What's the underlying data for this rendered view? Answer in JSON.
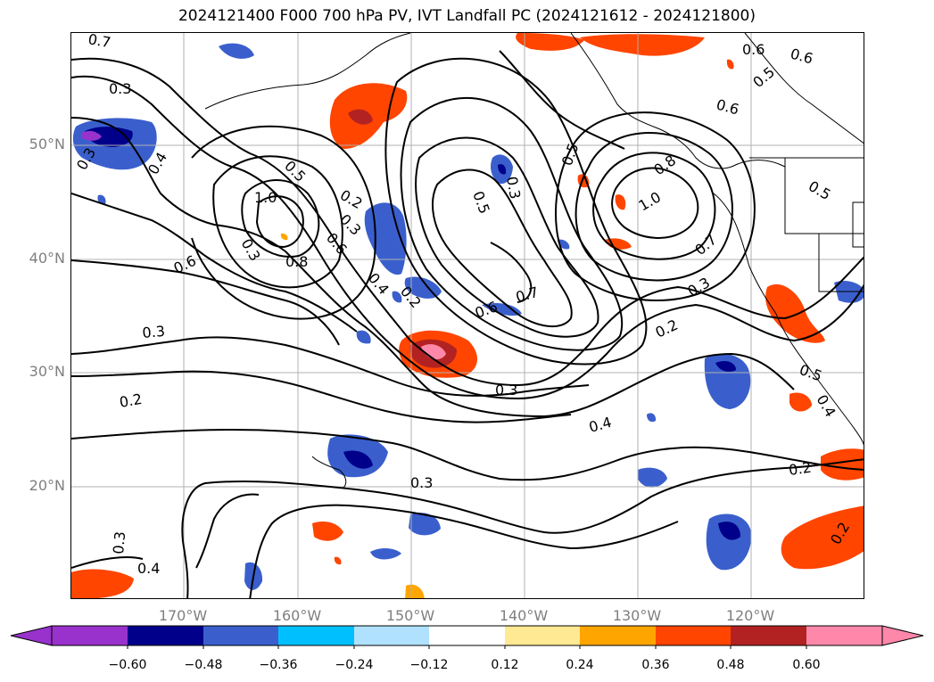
{
  "title": "2024121400 F000 700 hPa PV, IVT Landfall PC (2024121612 - 2024121800)",
  "lat_labels": [
    "50°N",
    "40°N",
    "30°N",
    "20°N"
  ],
  "lon_labels": [
    "170°W",
    "160°W",
    "150°W",
    "140°W",
    "130°W",
    "120°W"
  ],
  "colorbar": {
    "ticks": [
      "−0.60",
      "−0.48",
      "−0.36",
      "−0.24",
      "−0.12",
      "0.12",
      "0.24",
      "0.36",
      "0.48",
      "0.60"
    ],
    "colors": [
      "#9932cc",
      "#00008b",
      "#3a5fcd",
      "#00bfff",
      "#b0e2ff",
      "#ffffff",
      "#ffe993",
      "#ffa500",
      "#ff4500",
      "#b22222",
      "#ff88aa"
    ]
  },
  "contour_labels": [
    "0.7",
    "0.3",
    "0.4",
    "0.3",
    "1.0",
    "0.6",
    "0.8",
    "0.3",
    "0.2",
    "0.2",
    "0.5",
    "0.3",
    "0.6",
    "0.4",
    "0.2",
    "0.3",
    "0.3",
    "0.5",
    "0.7",
    "0.5",
    "1.0",
    "0.8",
    "0.6",
    "0.5",
    "0.6",
    "0.6",
    "0.5",
    "0.7",
    "0.3",
    "0.2",
    "0.4",
    "0.2",
    "0.5",
    "0.3",
    "0.4",
    "0.3",
    "0.6",
    "0.2",
    "0.3",
    "0.4"
  ],
  "colors": {
    "text": "#000000",
    "axis_label": "#7f7f7f",
    "grid": "#b0b0b0"
  }
}
